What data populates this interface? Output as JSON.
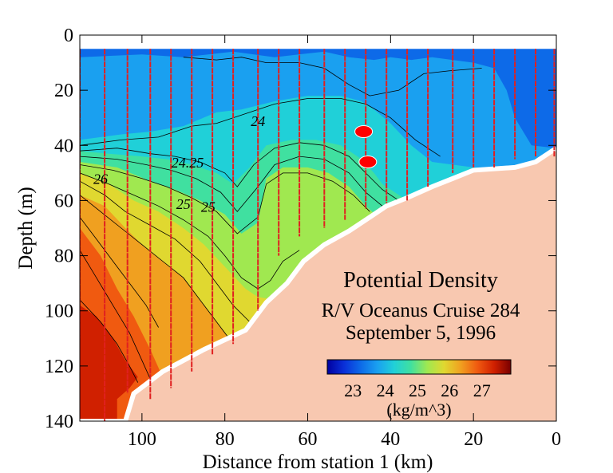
{
  "chart_data": {
    "type": "heatmap",
    "title": "Potential Density",
    "subtitle_lines": [
      "R/V Oceanus Cruise 284",
      "September 5, 1996"
    ],
    "xlabel": "Distance from station 1 (km)",
    "ylabel": "Depth (m)",
    "xlim": [
      115,
      0
    ],
    "ylim": [
      0,
      140
    ],
    "x_ticks": [
      "100",
      "80",
      "60",
      "40",
      "20",
      "0"
    ],
    "y_ticks": [
      "0",
      "20",
      "40",
      "60",
      "80",
      "100",
      "120",
      "140"
    ],
    "colorbar": {
      "ticks": [
        "23",
        "24",
        "25",
        "26",
        "27"
      ],
      "unit": "(kg/m^3)",
      "range": [
        22.2,
        27.9
      ],
      "colors": [
        "#0000a0",
        "#0a2fd8",
        "#0d6ae8",
        "#1aa0f0",
        "#20d0d8",
        "#40e0a0",
        "#a0e850",
        "#e0d830",
        "#f0a020",
        "#f05a10",
        "#d02000",
        "#780000"
      ]
    },
    "contour_labels": [
      {
        "text": "24",
        "x": 72,
        "y": 33
      },
      {
        "text": "24.25",
        "x": 89,
        "y": 48
      },
      {
        "text": "26",
        "x": 110,
        "y": 54
      },
      {
        "text": "25",
        "x": 90,
        "y": 63
      },
      {
        "text": "25",
        "x": 84,
        "y": 64
      }
    ],
    "stations": [
      {
        "x": 115,
        "depth": 110
      },
      {
        "x": 109,
        "depth": 140
      },
      {
        "x": 103.5,
        "depth": 130
      },
      {
        "x": 98,
        "depth": 132
      },
      {
        "x": 93,
        "depth": 128
      },
      {
        "x": 88,
        "depth": 122
      },
      {
        "x": 83,
        "depth": 116
      },
      {
        "x": 78,
        "depth": 112
      },
      {
        "x": 72,
        "depth": 100
      },
      {
        "x": 67,
        "depth": 80
      },
      {
        "x": 62,
        "depth": 73
      },
      {
        "x": 56,
        "depth": 70
      },
      {
        "x": 51,
        "depth": 67
      },
      {
        "x": 46,
        "depth": 63
      },
      {
        "x": 41,
        "depth": 61
      },
      {
        "x": 36,
        "depth": 60
      },
      {
        "x": 31,
        "depth": 55
      },
      {
        "x": 25,
        "depth": 50
      },
      {
        "x": 20,
        "depth": 48
      },
      {
        "x": 15,
        "depth": 48
      },
      {
        "x": 10,
        "depth": 45
      },
      {
        "x": 5,
        "depth": 44
      },
      {
        "x": 0.5,
        "depth": 44
      }
    ],
    "markers": [
      {
        "x": 46.5,
        "depth": 35
      },
      {
        "x": 45.5,
        "depth": 46
      }
    ],
    "bottom_profile": [
      [
        115,
        140
      ],
      [
        104,
        140
      ],
      [
        102,
        130
      ],
      [
        95,
        122
      ],
      [
        85,
        114
      ],
      [
        75,
        107
      ],
      [
        70,
        97
      ],
      [
        65,
        90
      ],
      [
        61,
        82
      ],
      [
        56,
        76
      ],
      [
        50,
        71
      ],
      [
        45,
        66
      ],
      [
        41,
        62
      ],
      [
        36,
        59
      ],
      [
        30,
        55
      ],
      [
        25,
        52
      ],
      [
        20,
        49
      ],
      [
        10,
        48
      ],
      [
        5,
        46
      ],
      [
        0,
        41
      ]
    ],
    "density_zones": [
      {
        "value": 23.5,
        "poly": [
          [
            115,
            5
          ],
          [
            115,
            140
          ],
          [
            0,
            140
          ],
          [
            0,
            5
          ]
        ]
      },
      {
        "value": 23.9,
        "poly": [
          [
            115,
            8
          ],
          [
            100,
            7
          ],
          [
            90,
            8
          ],
          [
            78,
            6
          ],
          [
            68,
            8
          ],
          [
            56,
            6
          ],
          [
            50,
            8
          ],
          [
            44,
            9
          ],
          [
            40,
            8
          ],
          [
            35,
            9
          ],
          [
            30,
            8
          ],
          [
            20,
            10
          ],
          [
            15,
            12
          ],
          [
            12,
            20
          ],
          [
            10,
            30
          ],
          [
            6,
            40
          ],
          [
            0,
            41
          ],
          [
            0,
            140
          ],
          [
            115,
            140
          ]
        ]
      },
      {
        "value": 24.2,
        "poly": [
          [
            115,
            38
          ],
          [
            105,
            36
          ],
          [
            98,
            35
          ],
          [
            90,
            33
          ],
          [
            82,
            28
          ],
          [
            76,
            27
          ],
          [
            68,
            24
          ],
          [
            60,
            22
          ],
          [
            52,
            22
          ],
          [
            47,
            24
          ],
          [
            44,
            27
          ],
          [
            40,
            32
          ],
          [
            35,
            40
          ],
          [
            30,
            46
          ],
          [
            20,
            48
          ],
          [
            0,
            48
          ],
          [
            0,
            140
          ],
          [
            115,
            140
          ]
        ]
      },
      {
        "value": 24.7,
        "poly": [
          [
            115,
            42
          ],
          [
            108,
            43
          ],
          [
            100,
            44
          ],
          [
            94,
            45
          ],
          [
            88,
            47
          ],
          [
            82,
            50
          ],
          [
            78,
            54
          ],
          [
            74,
            48
          ],
          [
            70,
            40
          ],
          [
            64,
            38
          ],
          [
            58,
            38
          ],
          [
            52,
            40
          ],
          [
            47,
            45
          ],
          [
            44,
            50
          ],
          [
            42,
            54
          ],
          [
            40,
            56
          ],
          [
            36,
            60
          ],
          [
            0,
            60
          ],
          [
            0,
            140
          ],
          [
            115,
            140
          ]
        ]
      },
      {
        "value": 25.2,
        "poly": [
          [
            115,
            46
          ],
          [
            106,
            48
          ],
          [
            98,
            53
          ],
          [
            92,
            56
          ],
          [
            86,
            60
          ],
          [
            80,
            65
          ],
          [
            76,
            72
          ],
          [
            72,
            68
          ],
          [
            70,
            52
          ],
          [
            66,
            48
          ],
          [
            60,
            48
          ],
          [
            55,
            50
          ],
          [
            50,
            55
          ],
          [
            46,
            62
          ],
          [
            43,
            66
          ],
          [
            0,
            66
          ],
          [
            0,
            140
          ],
          [
            115,
            140
          ]
        ]
      },
      {
        "value": 25.8,
        "poly": [
          [
            115,
            50
          ],
          [
            108,
            54
          ],
          [
            102,
            60
          ],
          [
            96,
            64
          ],
          [
            90,
            70
          ],
          [
            85,
            76
          ],
          [
            80,
            84
          ],
          [
            75,
            92
          ],
          [
            72,
            95
          ],
          [
            68,
            96
          ],
          [
            65,
            92
          ],
          [
            60,
            85
          ],
          [
            0,
            85
          ],
          [
            0,
            140
          ],
          [
            115,
            140
          ]
        ]
      },
      {
        "value": 26.2,
        "poly": [
          [
            115,
            58
          ],
          [
            109,
            62
          ],
          [
            104,
            70
          ],
          [
            100,
            76
          ],
          [
            95,
            82
          ],
          [
            90,
            88
          ],
          [
            86,
            96
          ],
          [
            82,
            104
          ],
          [
            78,
            112
          ],
          [
            0,
            112
          ],
          [
            0,
            140
          ],
          [
            115,
            140
          ]
        ]
      },
      {
        "value": 26.7,
        "poly": [
          [
            115,
            70
          ],
          [
            110,
            80
          ],
          [
            106,
            92
          ],
          [
            102,
            102
          ],
          [
            98,
            114
          ],
          [
            95,
            124
          ],
          [
            93,
            140
          ],
          [
            115,
            140
          ]
        ]
      },
      {
        "value": 27.0,
        "poly": [
          [
            115,
            98
          ],
          [
            111,
            102
          ],
          [
            107,
            110
          ],
          [
            104,
            118
          ],
          [
            101,
            124
          ],
          [
            103,
            128
          ],
          [
            106,
            132
          ],
          [
            106,
            140
          ],
          [
            115,
            140
          ]
        ]
      }
    ],
    "contour_lines": [
      [
        [
          115,
          40
        ],
        [
          105,
          38
        ],
        [
          96,
          37
        ],
        [
          88,
          33
        ],
        [
          82,
          32
        ],
        [
          76,
          29
        ],
        [
          68,
          25
        ],
        [
          60,
          23
        ],
        [
          52,
          23
        ],
        [
          46,
          25
        ],
        [
          40,
          30
        ],
        [
          34,
          38
        ],
        [
          28,
          44
        ]
      ],
      [
        [
          115,
          42
        ],
        [
          106,
          41
        ],
        [
          98,
          43
        ],
        [
          92,
          44
        ],
        [
          86,
          46
        ],
        [
          80,
          50
        ],
        [
          77,
          55
        ],
        [
          73,
          47
        ],
        [
          68,
          41
        ],
        [
          62,
          39
        ],
        [
          56,
          40
        ],
        [
          50,
          44
        ],
        [
          46,
          50
        ],
        [
          42,
          56
        ],
        [
          38,
          60
        ]
      ],
      [
        [
          115,
          44
        ],
        [
          106,
          45
        ],
        [
          99,
          47
        ],
        [
          93,
          49
        ],
        [
          87,
          52
        ],
        [
          81,
          57
        ],
        [
          77,
          64
        ],
        [
          72,
          55
        ],
        [
          68,
          47
        ],
        [
          62,
          44
        ],
        [
          56,
          45
        ],
        [
          50,
          50
        ],
        [
          46,
          57
        ],
        [
          42,
          62
        ]
      ],
      [
        [
          115,
          47
        ],
        [
          107,
          49
        ],
        [
          100,
          52
        ],
        [
          94,
          55
        ],
        [
          88,
          59
        ],
        [
          82,
          64
        ],
        [
          77,
          72
        ],
        [
          72,
          66
        ],
        [
          70,
          54
        ],
        [
          66,
          50
        ],
        [
          60,
          50
        ],
        [
          54,
          53
        ],
        [
          49,
          58
        ],
        [
          45,
          64
        ]
      ],
      [
        [
          115,
          50
        ],
        [
          108,
          54
        ],
        [
          102,
          58
        ],
        [
          96,
          62
        ],
        [
          90,
          67
        ],
        [
          84,
          73
        ],
        [
          80,
          80
        ],
        [
          76,
          88
        ],
        [
          72,
          92
        ],
        [
          69,
          89
        ],
        [
          66,
          82
        ],
        [
          62,
          78
        ]
      ],
      [
        [
          115,
          53
        ],
        [
          109,
          58
        ],
        [
          104,
          64
        ],
        [
          98,
          69
        ],
        [
          92,
          74
        ],
        [
          86,
          82
        ],
        [
          82,
          90
        ],
        [
          78,
          98
        ],
        [
          74,
          104
        ]
      ],
      [
        [
          115,
          58
        ],
        [
          110,
          64
        ],
        [
          105,
          70
        ],
        [
          100,
          76
        ],
        [
          95,
          82
        ],
        [
          90,
          88
        ],
        [
          86,
          96
        ],
        [
          82,
          104
        ],
        [
          79,
          110
        ]
      ],
      [
        [
          115,
          66
        ],
        [
          111,
          74
        ],
        [
          107,
          82
        ],
        [
          103,
          90
        ],
        [
          99,
          98
        ],
        [
          96,
          106
        ]
      ],
      [
        [
          115,
          78
        ],
        [
          111,
          88
        ],
        [
          107,
          98
        ],
        [
          103,
          108
        ],
        [
          100,
          118
        ],
        [
          97,
          128
        ]
      ],
      [
        [
          115,
          96
        ],
        [
          110,
          104
        ],
        [
          106,
          112
        ],
        [
          103,
          120
        ],
        [
          101,
          126
        ]
      ],
      [
        [
          90,
          8
        ],
        [
          82,
          9
        ],
        [
          76,
          8
        ],
        [
          70,
          10
        ],
        [
          62,
          10
        ],
        [
          56,
          12
        ],
        [
          50,
          18
        ],
        [
          45,
          22
        ],
        [
          38,
          20
        ],
        [
          32,
          14
        ],
        [
          26,
          13
        ],
        [
          18,
          12
        ]
      ]
    ]
  }
}
